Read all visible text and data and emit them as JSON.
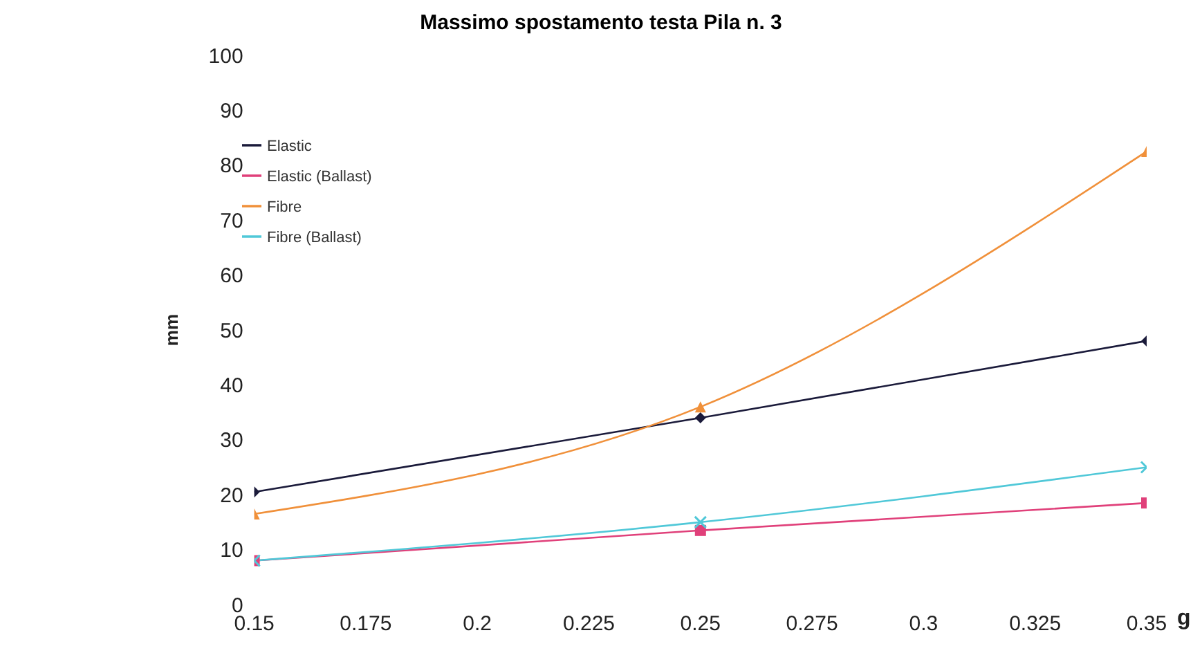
{
  "chart_data": {
    "type": "line",
    "title": "Massimo spostamento testa Pila n. 3",
    "xlabel": "g",
    "ylabel": "mm",
    "x": [
      0.15,
      0.25,
      0.35
    ],
    "xlim": [
      0.15,
      0.35
    ],
    "xticks": [
      0.15,
      0.175,
      0.2,
      0.225,
      0.25,
      0.275,
      0.3,
      0.325,
      0.35
    ],
    "ylim": [
      0,
      100
    ],
    "yticks": [
      0,
      10,
      20,
      30,
      40,
      50,
      60,
      70,
      80,
      90,
      100
    ],
    "grid": false,
    "legend": "top left",
    "series": [
      {
        "name": "Elastic",
        "color": "#1a1a3a",
        "marker": "diamond",
        "values": [
          20.5,
          34,
          48
        ]
      },
      {
        "name": "Elastic (Ballast)",
        "color": "#e0407a",
        "marker": "square",
        "values": [
          8,
          13.5,
          18.5
        ]
      },
      {
        "name": "Fibre",
        "color": "#f0903a",
        "marker": "triangle",
        "values": [
          16.5,
          36,
          82.5
        ]
      },
      {
        "name": "Fibre (Ballast)",
        "color": "#50c8d8",
        "marker": "cross",
        "values": [
          8,
          15,
          25
        ]
      }
    ]
  }
}
